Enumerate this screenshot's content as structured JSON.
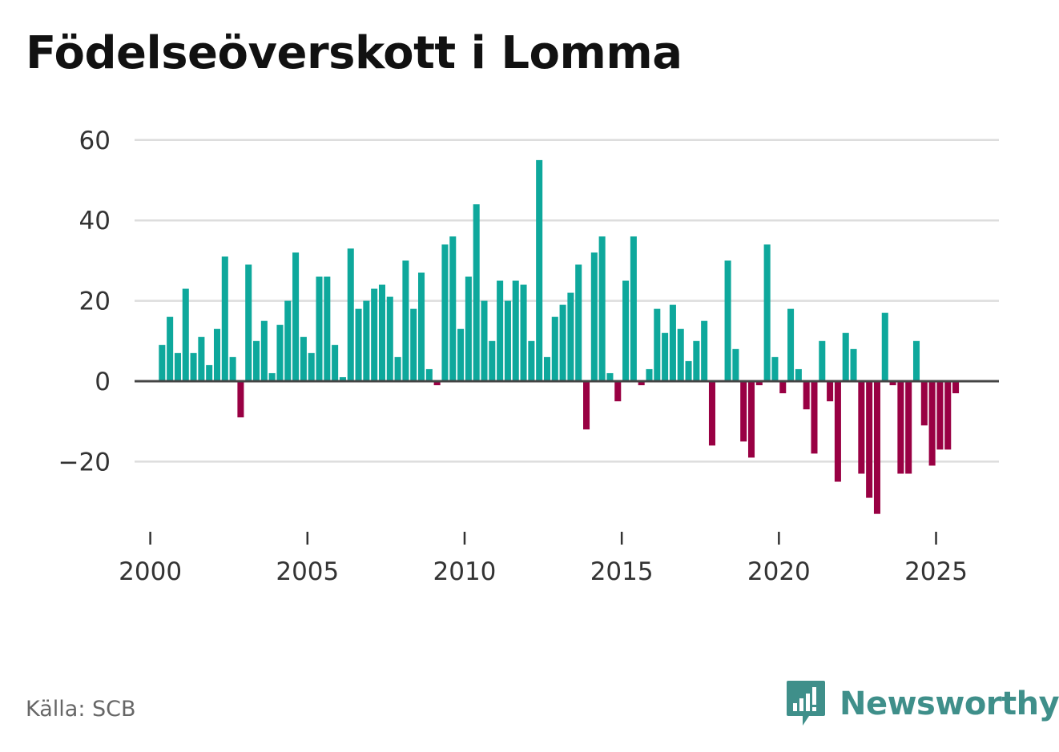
{
  "header": {
    "title": "Födelseöverskott i Lomma"
  },
  "footer": {
    "source": "Källa: SCB",
    "brand": "Newsworthy"
  },
  "colors": {
    "positive": "#0ea89c",
    "negative": "#990043",
    "zero_line": "#444444",
    "grid": "#dddddd",
    "brand": "#3f8f8a"
  },
  "icons": {
    "brand_logo": "bar-chart-speech-bubble-icon"
  },
  "chart_data": {
    "type": "bar",
    "title": "Födelseöverskott i Lomma",
    "xlabel": "",
    "ylabel": "",
    "ylim": [
      -35,
      60
    ],
    "xlim": [
      1999.5,
      2027.0
    ],
    "yticks": [
      60,
      40,
      20,
      0,
      -20
    ],
    "ytick_labels": [
      "60",
      "40",
      "20",
      "0",
      "−20"
    ],
    "xticks": [
      2000,
      2005,
      2010,
      2015,
      2020,
      2025
    ],
    "xtick_labels": [
      "2000",
      "2005",
      "2010",
      "2015",
      "2020",
      "2025"
    ],
    "grid": true,
    "frequency": "quarterly",
    "start": 2000.375,
    "step": 0.25,
    "values": [
      9,
      16,
      7,
      23,
      7,
      11,
      4,
      13,
      31,
      6,
      -9,
      29,
      10,
      15,
      2,
      14,
      20,
      32,
      11,
      7,
      26,
      26,
      9,
      1,
      33,
      18,
      20,
      23,
      24,
      21,
      6,
      30,
      18,
      27,
      3,
      -1,
      34,
      36,
      13,
      26,
      44,
      20,
      10,
      25,
      20,
      25,
      24,
      10,
      55,
      6,
      16,
      19,
      22,
      29,
      -12,
      32,
      36,
      2,
      -5,
      25,
      36,
      -1,
      3,
      18,
      12,
      19,
      13,
      5,
      10,
      15,
      -16,
      0,
      30,
      8,
      -15,
      -19,
      -1,
      34,
      6,
      -3,
      18,
      3,
      -7,
      -18,
      10,
      -5,
      -25,
      12,
      8,
      -23,
      -29,
      -33,
      17,
      -1,
      -23,
      -23,
      10,
      -11,
      -21,
      -17,
      -17,
      -3
    ]
  }
}
